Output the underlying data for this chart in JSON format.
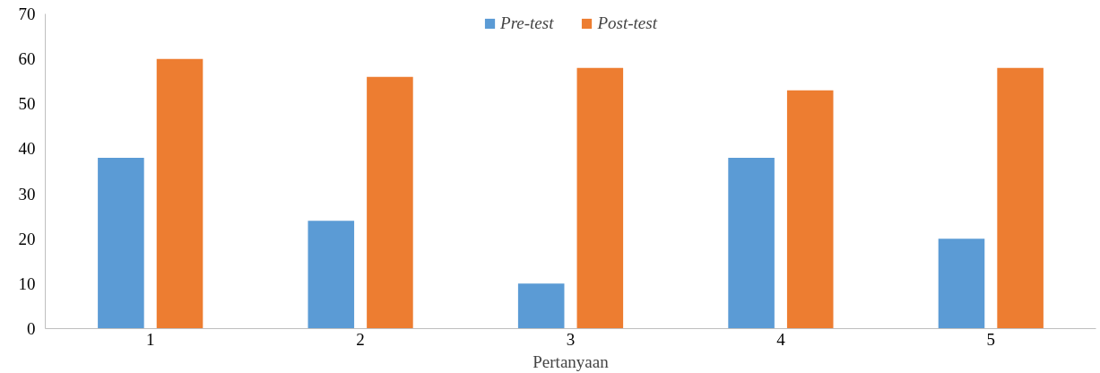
{
  "chart_data": {
    "type": "bar",
    "xlabel": "Pertanyaan",
    "categories": [
      "1",
      "2",
      "3",
      "4",
      "5"
    ],
    "series": [
      {
        "name": "Pre-test",
        "color": "#5b9bd5",
        "values": [
          38,
          24,
          10,
          38,
          20
        ]
      },
      {
        "name": "Post-test",
        "color": "#ed7d31",
        "values": [
          60,
          56,
          58,
          53,
          58
        ]
      }
    ],
    "ylim": [
      0,
      70
    ],
    "yticks": [
      0,
      10,
      20,
      30,
      40,
      50,
      60,
      70
    ],
    "grid": false,
    "legend": "top"
  }
}
